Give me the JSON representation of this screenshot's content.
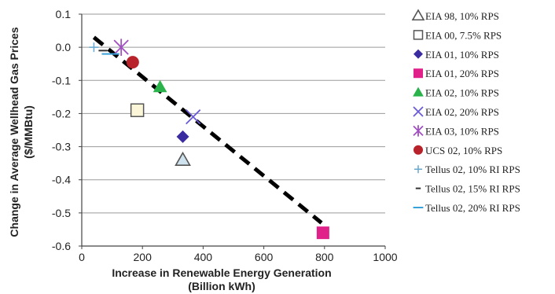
{
  "chart_data": {
    "type": "scatter",
    "xlabel_line1": "Increase in Renewable Energy Generation",
    "xlabel_line2": "(Billion kWh)",
    "ylabel_line1": "Change in Average Wellhead Gas Prices",
    "ylabel_line2": "($/MMBtu)",
    "xlim": [
      0,
      1000
    ],
    "ylim": [
      -0.6,
      0.1
    ],
    "x_ticks": [
      {
        "value": 0,
        "label": "0"
      },
      {
        "value": 200,
        "label": "200"
      },
      {
        "value": 400,
        "label": "400"
      },
      {
        "value": 600,
        "label": "600"
      },
      {
        "value": 800,
        "label": "800"
      },
      {
        "value": 1000,
        "label": "1000"
      }
    ],
    "y_ticks": [
      {
        "value": 0.1,
        "label": "0.1"
      },
      {
        "value": 0.0,
        "label": "0.0"
      },
      {
        "value": -0.1,
        "label": "-0.1"
      },
      {
        "value": -0.2,
        "label": "-0.2"
      },
      {
        "value": -0.3,
        "label": "-0.3"
      },
      {
        "value": -0.4,
        "label": "-0.4"
      },
      {
        "value": -0.5,
        "label": "-0.5"
      },
      {
        "value": -0.6,
        "label": "-0.6"
      }
    ],
    "grid": "horizontal",
    "legend_position": "right",
    "series": [
      {
        "name": "EIA 98, 10% RPS",
        "marker": "triangle-open",
        "color": "#555555",
        "fill": "#cfe3ef",
        "x": 333,
        "y": -0.34
      },
      {
        "name": "EIA 00, 7.5% RPS",
        "marker": "square-open",
        "color": "#555555",
        "fill": "#fbf6d8",
        "x": 183,
        "y": -0.19
      },
      {
        "name": "EIA 01, 10% RPS",
        "marker": "diamond",
        "color": "#3a2ca0",
        "x": 333,
        "y": -0.27
      },
      {
        "name": "EIA 01, 20% RPS",
        "marker": "square",
        "color": "#e0218a",
        "x": 795,
        "y": -0.56
      },
      {
        "name": "EIA 02, 10% RPS",
        "marker": "triangle",
        "color": "#2bb34b",
        "x": 258,
        "y": -0.12
      },
      {
        "name": "EIA 02, 20% RPS",
        "marker": "x",
        "color": "#6a5bd6",
        "x": 367,
        "y": -0.21
      },
      {
        "name": "EIA 03, 10% RPS",
        "marker": "asterisk",
        "color": "#a050c0",
        "x": 130,
        "y": 0.0
      },
      {
        "name": "UCS 02, 10% RPS",
        "marker": "circle",
        "color": "#b8232b",
        "x": 168,
        "y": -0.045
      },
      {
        "name": "Tellus 02, 10% RI RPS",
        "marker": "plus",
        "color": "#66a8d0",
        "x": 40,
        "y": 0.0
      },
      {
        "name": "Tellus 02, 15% RI RPS",
        "marker": "dash",
        "color": "#333333",
        "x": 70,
        "y": -0.01
      },
      {
        "name": "Tellus 02, 20% RI RPS",
        "marker": "dash-long",
        "color": "#3aa0d8",
        "x": 95,
        "y": -0.02
      }
    ],
    "trendline": {
      "style": "dashed",
      "color": "#000000",
      "x": [
        40,
        790
      ],
      "y": [
        0.03,
        -0.53
      ]
    }
  }
}
